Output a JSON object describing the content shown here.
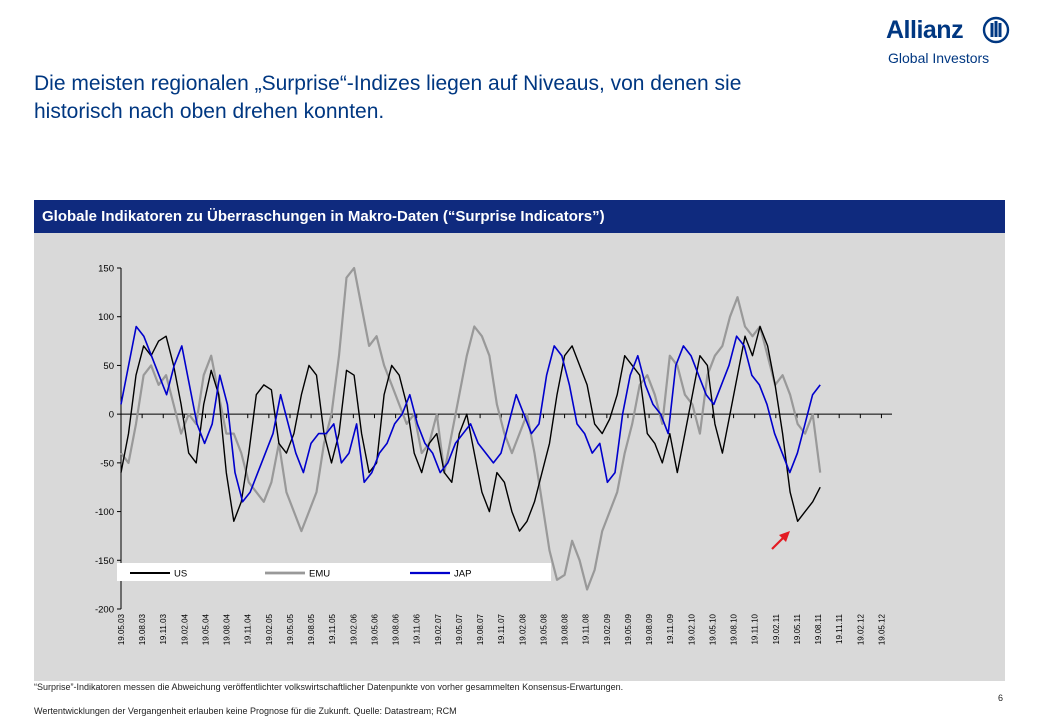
{
  "header": {
    "logo_brand": "Allianz",
    "logo_sub": "Global Investors",
    "headline": "Die meisten regionalen „Surprise“-Indizes liegen auf Niveaus, von denen sie historisch nach oben drehen konnten."
  },
  "banner": {
    "title": "Globale Indikatoren zu Überraschungen in Makro-Daten (“Surprise Indicators”)"
  },
  "footer": {
    "footnote": "“Surprise”-Indikatoren messen die Abweichung veröffentlichter volkswirtschaftlicher Datenpunkte von vorher gesammelten Konsensus-Erwartungen.",
    "disclaimer": "Wertentwicklungen der Vergangenheit erlauben keine Prognose für die Zukunft. Quelle: Datastream; RCM",
    "page": "6"
  },
  "colors": {
    "brand": "#003781",
    "banner": "#0f2a7e",
    "panel": "#d9d9d9",
    "us": "#000000",
    "emu": "#999999",
    "jap": "#0000cc",
    "arrow": "#e31b23"
  },
  "chart_data": {
    "type": "line",
    "title": "",
    "xlabel": "",
    "ylabel": "",
    "ylim": [
      -200,
      150
    ],
    "yticks": [
      150,
      100,
      50,
      0,
      -50,
      -100,
      -150,
      -200
    ],
    "grid": false,
    "legend_position": "bottom-left",
    "x_tick_labels": [
      "19.05.03",
      "19.08.03",
      "19.11.03",
      "19.02.04",
      "19.05.04",
      "19.08.04",
      "19.11.04",
      "19.02.05",
      "19.05.05",
      "19.08.05",
      "19.11.05",
      "19.02.06",
      "19.05.06",
      "19.08.06",
      "19.11.06",
      "19.02.07",
      "19.05.07",
      "19.08.07",
      "19.11.07",
      "19.02.08",
      "19.05.08",
      "19.08.08",
      "19.11.08",
      "19.02.09",
      "19.05.09",
      "19.08.09",
      "19.11.09",
      "19.02.10",
      "19.05.10",
      "19.08.10",
      "19.11.10",
      "19.02.11",
      "19.05.11",
      "19.08.11",
      "19.11.11",
      "19.02.12",
      "19.05.12"
    ],
    "x_data_end_index": 33.1,
    "series": [
      {
        "name": "US",
        "values": [
          -60,
          -20,
          40,
          70,
          60,
          75,
          80,
          50,
          10,
          -40,
          -50,
          10,
          45,
          20,
          -60,
          -110,
          -90,
          -40,
          20,
          30,
          25,
          -30,
          -40,
          -20,
          20,
          50,
          40,
          -20,
          -50,
          -20,
          45,
          40,
          -20,
          -60,
          -50,
          20,
          50,
          40,
          10,
          -40,
          -60,
          -30,
          -20,
          -60,
          -70,
          -20,
          0,
          -40,
          -80,
          -100,
          -60,
          -70,
          -100,
          -120,
          -110,
          -90,
          -60,
          -30,
          20,
          60,
          70,
          50,
          30,
          -10,
          -20,
          -5,
          20,
          60,
          50,
          40,
          -20,
          -30,
          -50,
          -20,
          -60,
          -20,
          20,
          60,
          50,
          -10,
          -40,
          0,
          40,
          80,
          60,
          90,
          70,
          30,
          -20,
          -80,
          -110,
          -100,
          -90,
          -75
        ]
      },
      {
        "name": "EMU",
        "values": [
          -40,
          -50,
          -10,
          40,
          50,
          30,
          40,
          10,
          -20,
          0,
          -10,
          40,
          60,
          20,
          -20,
          -20,
          -40,
          -70,
          -80,
          -90,
          -70,
          -30,
          -80,
          -100,
          -120,
          -100,
          -80,
          -30,
          0,
          60,
          140,
          150,
          110,
          70,
          80,
          50,
          30,
          10,
          -10,
          0,
          -40,
          -30,
          0,
          -60,
          -20,
          20,
          60,
          90,
          80,
          60,
          10,
          -20,
          -40,
          -20,
          0,
          -40,
          -90,
          -140,
          -170,
          -165,
          -130,
          -150,
          -180,
          -160,
          -120,
          -100,
          -80,
          -40,
          -10,
          30,
          40,
          20,
          -10,
          60,
          50,
          20,
          10,
          -20,
          40,
          60,
          70,
          100,
          120,
          90,
          80,
          90,
          60,
          30,
          40,
          20,
          -10,
          -20,
          0,
          -60
        ]
      },
      {
        "name": "JAP",
        "values": [
          10,
          50,
          90,
          80,
          60,
          40,
          20,
          50,
          70,
          30,
          -10,
          -30,
          -10,
          40,
          10,
          -60,
          -90,
          -80,
          -60,
          -40,
          -20,
          20,
          -10,
          -40,
          -60,
          -30,
          -20,
          -20,
          -10,
          -50,
          -40,
          -10,
          -70,
          -60,
          -40,
          -30,
          -10,
          0,
          20,
          -10,
          -30,
          -40,
          -60,
          -50,
          -30,
          -20,
          -10,
          -30,
          -40,
          -50,
          -40,
          -10,
          20,
          0,
          -20,
          -10,
          40,
          70,
          60,
          30,
          -10,
          -20,
          -40,
          -30,
          -70,
          -60,
          0,
          40,
          60,
          30,
          10,
          0,
          -20,
          50,
          70,
          60,
          40,
          20,
          10,
          30,
          50,
          80,
          70,
          40,
          30,
          10,
          -20,
          -40,
          -60,
          -40,
          -10,
          20,
          30
        ]
      }
    ]
  }
}
